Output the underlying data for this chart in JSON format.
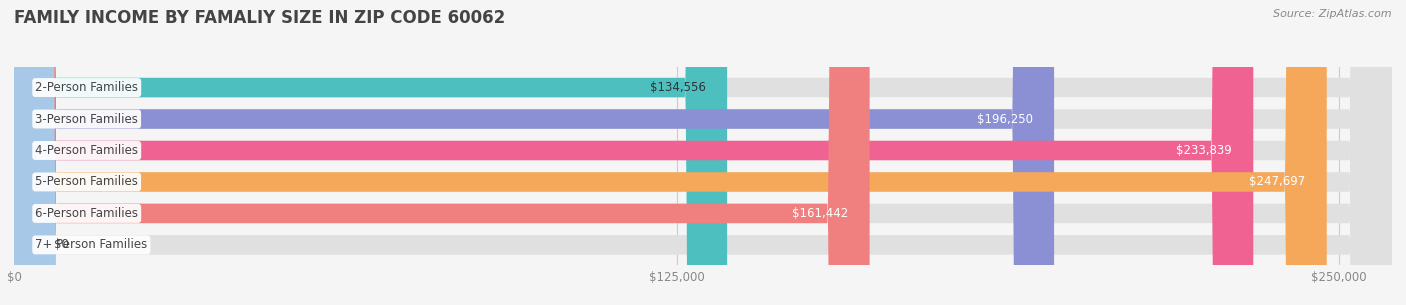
{
  "title": "FAMILY INCOME BY FAMALIY SIZE IN ZIP CODE 60062",
  "source": "Source: ZipAtlas.com",
  "categories": [
    "2-Person Families",
    "3-Person Families",
    "4-Person Families",
    "5-Person Families",
    "6-Person Families",
    "7+ Person Families"
  ],
  "values": [
    134556,
    196250,
    233839,
    247697,
    161442,
    0
  ],
  "bar_colors": [
    "#4DBFBF",
    "#8B8FD4",
    "#F06292",
    "#F5A85A",
    "#F08080",
    "#A8C8E8"
  ],
  "label_colors": [
    "#333333",
    "#ffffff",
    "#ffffff",
    "#ffffff",
    "#ffffff",
    "#333333"
  ],
  "background_color": "#f5f5f5",
  "xlim": [
    0,
    260000
  ],
  "xticks": [
    0,
    125000,
    250000
  ],
  "xtick_labels": [
    "$0",
    "$125,000",
    "$250,000"
  ],
  "title_fontsize": 12,
  "label_fontsize": 8.5,
  "tick_fontsize": 8.5,
  "source_fontsize": 8
}
